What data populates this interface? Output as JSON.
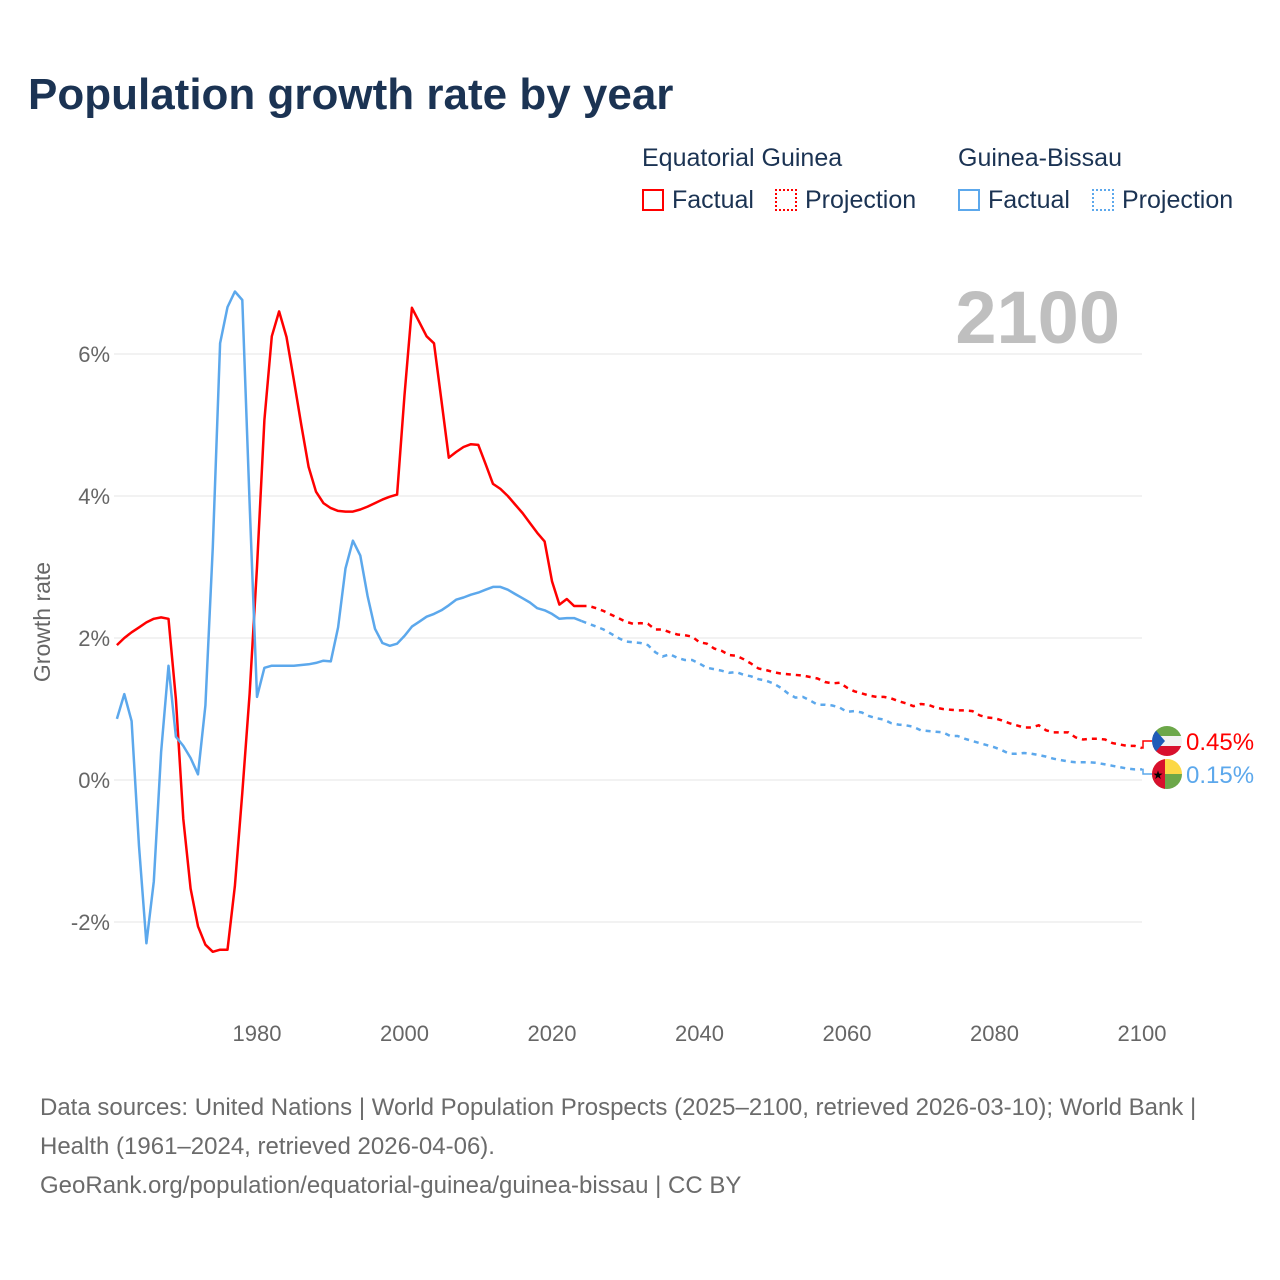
{
  "title": "Population growth rate by year",
  "legend": {
    "groups": [
      {
        "country": "Equatorial Guinea",
        "factual": "Factual",
        "projection": "Projection",
        "color": "#ff0000"
      },
      {
        "country": "Guinea-Bissau",
        "factual": "Factual",
        "projection": "Projection",
        "color": "#5ca8ec"
      }
    ]
  },
  "year_display": "2100",
  "footer": {
    "line1": "Data sources: United Nations | World Population Prospects (2025–2100, retrieved 2026-03-10); World Bank | Health (1961–2024, retrieved 2026-04-06).",
    "line2": "GeoRank.org/population/equatorial-guinea/guinea-bissau | CC BY"
  },
  "chart_data": {
    "type": "line",
    "title": "Population growth rate by year",
    "xlabel": "",
    "ylabel": "Growth rate",
    "xlim": [
      1961,
      2100
    ],
    "ylim": [
      -3,
      7.5
    ],
    "xticks": [
      {
        "v": 1980,
        "label": "1980"
      },
      {
        "v": 2000,
        "label": "2000"
      },
      {
        "v": 2020,
        "label": "2020"
      },
      {
        "v": 2040,
        "label": "2040"
      },
      {
        "v": 2060,
        "label": "2060"
      },
      {
        "v": 2080,
        "label": "2080"
      },
      {
        "v": 2100,
        "label": "2100"
      }
    ],
    "yticks": [
      {
        "v": -2,
        "label": "-2%"
      },
      {
        "v": 0,
        "label": "0%"
      },
      {
        "v": 2,
        "label": "2%"
      },
      {
        "v": 4,
        "label": "4%"
      },
      {
        "v": 6,
        "label": "6%"
      }
    ],
    "grid": true,
    "series": [
      {
        "name": "Equatorial Guinea",
        "color": "#ff0000",
        "end_label": "0.45%",
        "factual_start": 1961,
        "factual": [
          1.9,
          2.0,
          2.08,
          2.15,
          2.22,
          2.27,
          2.29,
          2.27,
          1.14,
          -0.55,
          -1.53,
          -2.06,
          -2.32,
          -2.42,
          -2.39,
          -2.39,
          -1.49,
          -0.18,
          1.21,
          3.0,
          5.07,
          6.25,
          6.6,
          6.24,
          5.63,
          5.0,
          4.41,
          4.06,
          3.9,
          3.83,
          3.79,
          3.78,
          3.78,
          3.81,
          3.85,
          3.9,
          3.95,
          3.99,
          4.02,
          5.42,
          6.65,
          6.45,
          6.25,
          6.15,
          5.35,
          4.54,
          4.62,
          4.69,
          4.73,
          4.72,
          4.45,
          4.17,
          4.1,
          4.0,
          3.88,
          3.76,
          3.62,
          3.48,
          3.36,
          2.8,
          2.47,
          2.55,
          2.45,
          2.45
        ],
        "projection_start": 2024,
        "projection": [
          2.45,
          2.45,
          2.42,
          2.38,
          2.33,
          2.28,
          2.23,
          2.2,
          2.21,
          2.2,
          2.12,
          2.12,
          2.08,
          2.05,
          2.04,
          2.02,
          1.94,
          1.92,
          1.85,
          1.82,
          1.76,
          1.75,
          1.7,
          1.64,
          1.57,
          1.55,
          1.52,
          1.5,
          1.49,
          1.48,
          1.47,
          1.45,
          1.43,
          1.38,
          1.36,
          1.37,
          1.3,
          1.25,
          1.22,
          1.19,
          1.17,
          1.17,
          1.15,
          1.11,
          1.08,
          1.04,
          1.07,
          1.06,
          1.02,
          1.0,
          0.99,
          0.98,
          0.98,
          0.97,
          0.91,
          0.88,
          0.87,
          0.84,
          0.8,
          0.77,
          0.74,
          0.74,
          0.77,
          0.7,
          0.67,
          0.67,
          0.67,
          0.6,
          0.57,
          0.58,
          0.58,
          0.57,
          0.52,
          0.5,
          0.48,
          0.48,
          0.45
        ]
      },
      {
        "name": "Guinea-Bissau",
        "color": "#5ca8ec",
        "end_label": "0.15%",
        "factual_start": 1961,
        "factual": [
          0.86,
          1.21,
          0.83,
          -0.93,
          -2.3,
          -1.43,
          0.39,
          1.61,
          0.61,
          0.48,
          0.31,
          0.08,
          1.05,
          3.28,
          6.15,
          6.66,
          6.88,
          6.76,
          3.9,
          1.17,
          1.58,
          1.61,
          1.61,
          1.61,
          1.61,
          1.62,
          1.63,
          1.65,
          1.68,
          1.67,
          2.15,
          2.98,
          3.37,
          3.16,
          2.59,
          2.13,
          1.93,
          1.89,
          1.92,
          2.03,
          2.16,
          2.23,
          2.3,
          2.34,
          2.39,
          2.46,
          2.54,
          2.57,
          2.61,
          2.64,
          2.68,
          2.72,
          2.72,
          2.68,
          2.62,
          2.56,
          2.5,
          2.42,
          2.39,
          2.34,
          2.27,
          2.28,
          2.28,
          2.24
        ],
        "projection_start": 2024,
        "projection": [
          2.24,
          2.2,
          2.16,
          2.12,
          2.06,
          2.0,
          1.95,
          1.94,
          1.93,
          1.9,
          1.8,
          1.74,
          1.77,
          1.72,
          1.69,
          1.69,
          1.64,
          1.58,
          1.56,
          1.54,
          1.51,
          1.52,
          1.48,
          1.46,
          1.42,
          1.4,
          1.36,
          1.3,
          1.22,
          1.16,
          1.17,
          1.12,
          1.06,
          1.06,
          1.05,
          1.02,
          0.96,
          0.97,
          0.95,
          0.9,
          0.87,
          0.85,
          0.8,
          0.78,
          0.77,
          0.75,
          0.7,
          0.69,
          0.68,
          0.67,
          0.62,
          0.62,
          0.58,
          0.55,
          0.52,
          0.49,
          0.46,
          0.42,
          0.37,
          0.37,
          0.38,
          0.37,
          0.35,
          0.33,
          0.3,
          0.28,
          0.26,
          0.25,
          0.25,
          0.25,
          0.24,
          0.22,
          0.2,
          0.18,
          0.16,
          0.15,
          0.15
        ]
      }
    ]
  }
}
